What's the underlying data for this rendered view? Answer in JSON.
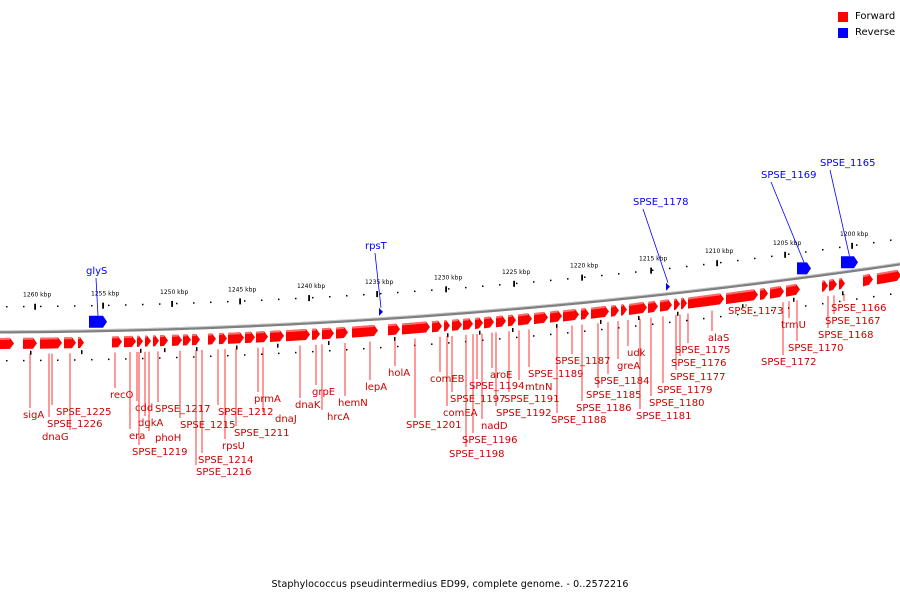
{
  "legend": {
    "items": [
      {
        "label": "Forward",
        "color": "#ff0000"
      },
      {
        "label": "Reverse",
        "color": "#0000ff"
      }
    ]
  },
  "caption": "Staphylococcus pseudintermedius ED99, complete genome. - 0..2572216",
  "colors": {
    "forward": "#ff0000",
    "reverse": "#0000ff",
    "backbone": "#808080",
    "tick": "#000000"
  },
  "ticks": [
    "1260 kbp",
    "1255 kbp",
    "1250 kbp",
    "1245 kbp",
    "1240 kbp",
    "1235 kbp",
    "1230 kbp",
    "1225 kbp",
    "1220 kbp",
    "1215 kbp",
    "1210 kbp",
    "1205 kbp",
    "1200 kbp"
  ],
  "reverse_labels": [
    "glyS",
    "rpsT",
    "SPSE_1178",
    "SPSE_1169",
    "SPSE_1165"
  ],
  "forward_labels": [
    "sigA",
    "SPSE_1225",
    "SPSE_1226",
    "dnaG",
    "recO",
    "era",
    "cdd",
    "dgkA",
    "phoH",
    "SPSE_1219",
    "SPSE_1217",
    "SPSE_1215",
    "SPSE_1216",
    "SPSE_1214",
    "rpsU",
    "SPSE_1212",
    "SPSE_1211",
    "prmA",
    "dnaJ",
    "dnaK",
    "grpE",
    "hrcA",
    "hemN",
    "lepA",
    "holA",
    "SPSE_1201",
    "comEB",
    "comEA",
    "SPSE_1197",
    "SPSE_1198",
    "SPSE_1196",
    "nadD",
    "SPSE_1194",
    "aroE",
    "SPSE_1192",
    "SPSE_1191",
    "mtnN",
    "SPSE_1189",
    "SPSE_1188",
    "SPSE_1187",
    "SPSE_1186",
    "SPSE_1185",
    "greA",
    "SPSE_1184",
    "udk",
    "SPSE_1181",
    "SPSE_1180",
    "SPSE_1179",
    "SPSE_1177",
    "SPSE_1176",
    "SPSE_1175",
    "alaS",
    "SPSE_1173",
    "SPSE_1172",
    "trmU",
    "SPSE_1170",
    "SPSE_1168",
    "SPSE_1167",
    "SPSE_1166"
  ]
}
